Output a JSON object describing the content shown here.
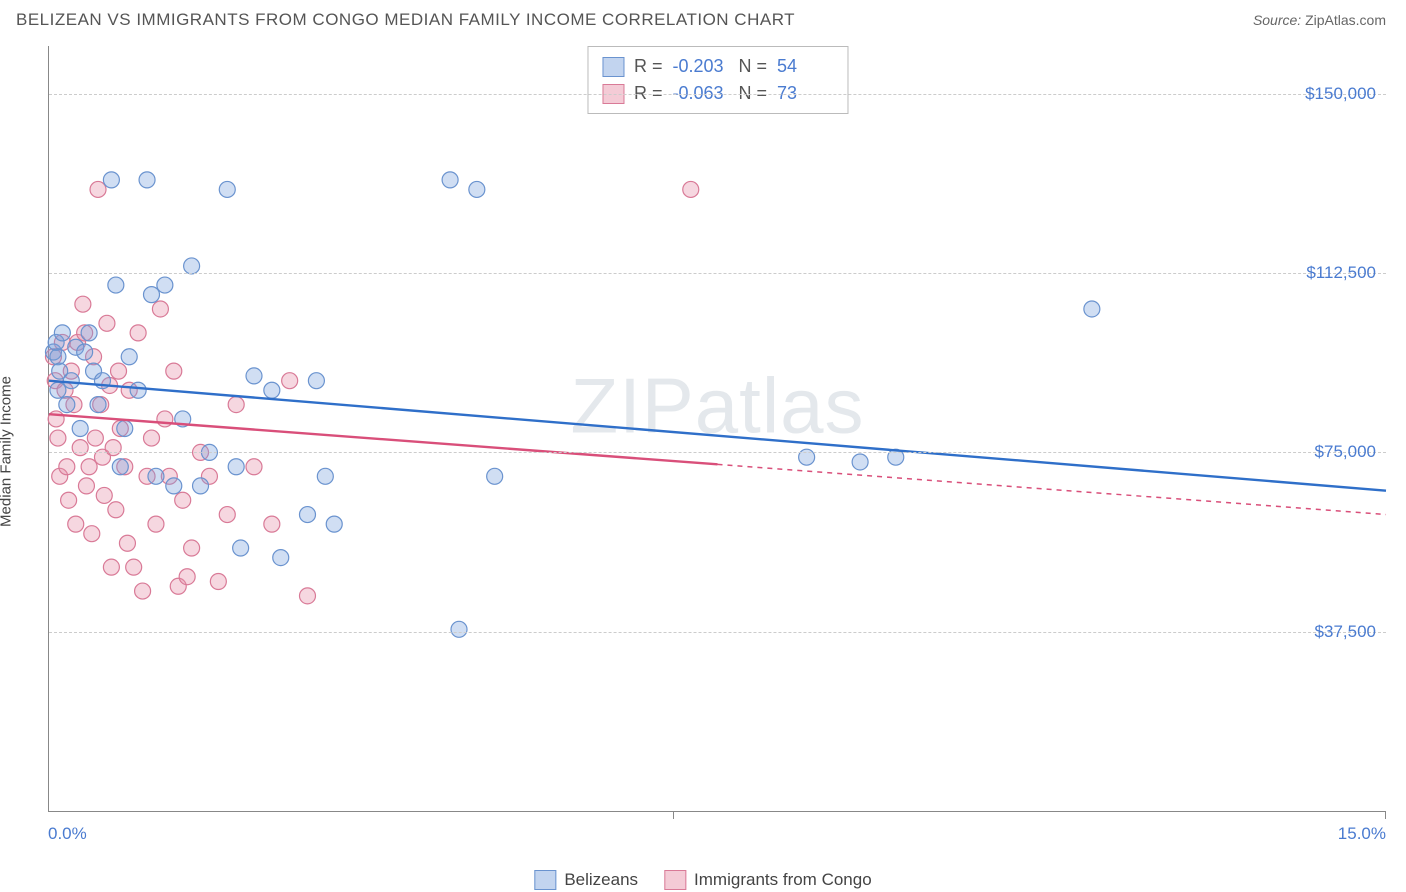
{
  "header": {
    "title": "BELIZEAN VS IMMIGRANTS FROM CONGO MEDIAN FAMILY INCOME CORRELATION CHART",
    "source_label": "Source:",
    "source_value": "ZipAtlas.com"
  },
  "chart": {
    "type": "scatter",
    "y_axis_label": "Median Family Income",
    "watermark": "ZIPatlas",
    "xlim": [
      0,
      15
    ],
    "ylim": [
      0,
      160000
    ],
    "x_ticks": [
      {
        "pos": 0,
        "label": "0.0%"
      },
      {
        "pos": 15,
        "label": "15.0%"
      }
    ],
    "x_minor_tick": 7.0,
    "y_grid": [
      {
        "val": 37500,
        "label": "$37,500"
      },
      {
        "val": 75000,
        "label": "$75,000"
      },
      {
        "val": 112500,
        "label": "$112,500"
      },
      {
        "val": 150000,
        "label": "$150,000"
      }
    ],
    "grid_color": "#cccccc",
    "background_color": "#ffffff",
    "axis_color": "#888888",
    "tick_label_color": "#4a7bd0",
    "label_fontsize": 15,
    "tick_fontsize": 17,
    "marker_radius": 8,
    "marker_stroke_width": 1.2,
    "line_width": 2.4,
    "series": [
      {
        "name": "Belizeans",
        "color_fill": "rgba(120,160,220,0.35)",
        "color_stroke": "#6a93cf",
        "line_color": "#2f6fc9",
        "R": "-0.203",
        "N": "54",
        "trend": {
          "x1": 0,
          "y1": 90000,
          "x2": 15,
          "y2": 67000,
          "dash_from_x": null
        },
        "points": [
          [
            0.05,
            96000
          ],
          [
            0.08,
            98000
          ],
          [
            0.1,
            95000
          ],
          [
            0.1,
            88000
          ],
          [
            0.12,
            92000
          ],
          [
            0.15,
            100000
          ],
          [
            0.2,
            85000
          ],
          [
            0.25,
            90000
          ],
          [
            0.3,
            97000
          ],
          [
            0.35,
            80000
          ],
          [
            0.4,
            96000
          ],
          [
            0.45,
            100000
          ],
          [
            0.5,
            92000
          ],
          [
            0.55,
            85000
          ],
          [
            0.6,
            90000
          ],
          [
            0.7,
            132000
          ],
          [
            0.75,
            110000
          ],
          [
            0.8,
            72000
          ],
          [
            0.85,
            80000
          ],
          [
            0.9,
            95000
          ],
          [
            1.0,
            88000
          ],
          [
            1.1,
            132000
          ],
          [
            1.15,
            108000
          ],
          [
            1.2,
            70000
          ],
          [
            1.3,
            110000
          ],
          [
            1.4,
            68000
          ],
          [
            1.5,
            82000
          ],
          [
            1.6,
            114000
          ],
          [
            1.7,
            68000
          ],
          [
            1.8,
            75000
          ],
          [
            2.0,
            130000
          ],
          [
            2.1,
            72000
          ],
          [
            2.15,
            55000
          ],
          [
            2.3,
            91000
          ],
          [
            2.5,
            88000
          ],
          [
            2.6,
            53000
          ],
          [
            2.9,
            62000
          ],
          [
            3.0,
            90000
          ],
          [
            3.1,
            70000
          ],
          [
            3.2,
            60000
          ],
          [
            4.5,
            132000
          ],
          [
            4.6,
            38000
          ],
          [
            4.8,
            130000
          ],
          [
            5.0,
            70000
          ],
          [
            8.5,
            74000
          ],
          [
            9.1,
            73000
          ],
          [
            9.5,
            74000
          ],
          [
            11.7,
            105000
          ]
        ]
      },
      {
        "name": "Immigrants from Congo",
        "color_fill": "rgba(230,140,165,0.35)",
        "color_stroke": "#d97a97",
        "line_color": "#d94f7a",
        "R": "-0.063",
        "N": "73",
        "trend": {
          "x1": 0,
          "y1": 83000,
          "x2": 15,
          "y2": 62000,
          "dash_from_x": 7.5
        },
        "points": [
          [
            0.05,
            95000
          ],
          [
            0.07,
            90000
          ],
          [
            0.08,
            82000
          ],
          [
            0.1,
            78000
          ],
          [
            0.12,
            70000
          ],
          [
            0.15,
            98000
          ],
          [
            0.18,
            88000
          ],
          [
            0.2,
            72000
          ],
          [
            0.22,
            65000
          ],
          [
            0.25,
            92000
          ],
          [
            0.28,
            85000
          ],
          [
            0.3,
            60000
          ],
          [
            0.32,
            98000
          ],
          [
            0.35,
            76000
          ],
          [
            0.38,
            106000
          ],
          [
            0.4,
            100000
          ],
          [
            0.42,
            68000
          ],
          [
            0.45,
            72000
          ],
          [
            0.48,
            58000
          ],
          [
            0.5,
            95000
          ],
          [
            0.52,
            78000
          ],
          [
            0.55,
            130000
          ],
          [
            0.58,
            85000
          ],
          [
            0.6,
            74000
          ],
          [
            0.62,
            66000
          ],
          [
            0.65,
            102000
          ],
          [
            0.68,
            89000
          ],
          [
            0.7,
            51000
          ],
          [
            0.72,
            76000
          ],
          [
            0.75,
            63000
          ],
          [
            0.78,
            92000
          ],
          [
            0.8,
            80000
          ],
          [
            0.85,
            72000
          ],
          [
            0.88,
            56000
          ],
          [
            0.9,
            88000
          ],
          [
            0.95,
            51000
          ],
          [
            1.0,
            100000
          ],
          [
            1.05,
            46000
          ],
          [
            1.1,
            70000
          ],
          [
            1.15,
            78000
          ],
          [
            1.2,
            60000
          ],
          [
            1.25,
            105000
          ],
          [
            1.3,
            82000
          ],
          [
            1.35,
            70000
          ],
          [
            1.4,
            92000
          ],
          [
            1.45,
            47000
          ],
          [
            1.5,
            65000
          ],
          [
            1.55,
            49000
          ],
          [
            1.6,
            55000
          ],
          [
            1.7,
            75000
          ],
          [
            1.8,
            70000
          ],
          [
            1.9,
            48000
          ],
          [
            2.0,
            62000
          ],
          [
            2.1,
            85000
          ],
          [
            2.3,
            72000
          ],
          [
            2.5,
            60000
          ],
          [
            2.7,
            90000
          ],
          [
            2.9,
            45000
          ],
          [
            7.2,
            130000
          ]
        ]
      }
    ],
    "legend": {
      "items": [
        {
          "label": "Belizeans",
          "fill": "rgba(120,160,220,0.45)",
          "stroke": "#6a93cf"
        },
        {
          "label": "Immigrants from Congo",
          "fill": "rgba(230,140,165,0.45)",
          "stroke": "#d97a97"
        }
      ]
    }
  }
}
